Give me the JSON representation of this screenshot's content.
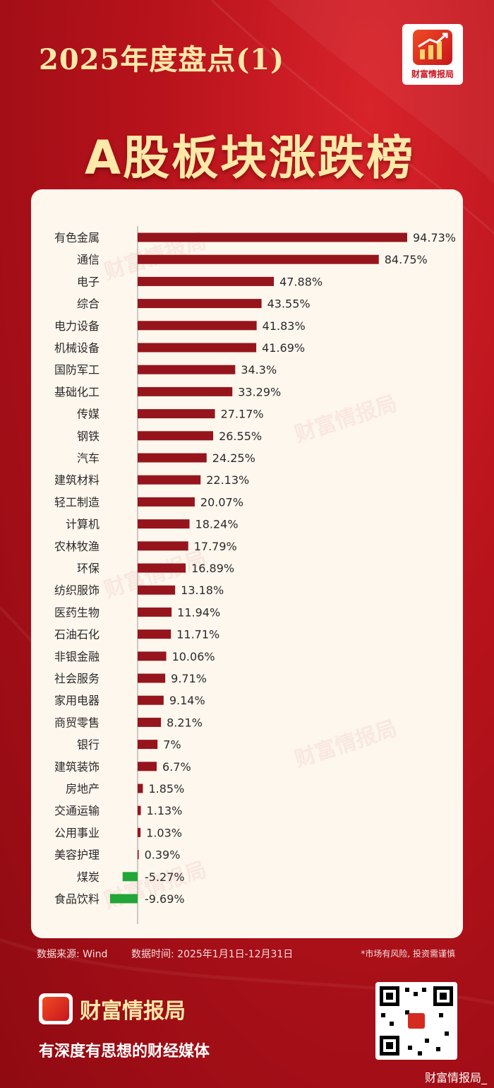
{
  "header": {
    "subtitle": "2025年度盘点(1)",
    "title": "A股板块涨跌榜",
    "logo_label": "财富情报局"
  },
  "watermark_text": "财富情报局",
  "chart_data": {
    "type": "bar",
    "orientation": "horizontal",
    "title": "A股板块涨跌榜",
    "xlabel": "",
    "ylabel": "",
    "grid": false,
    "value_suffix": "%",
    "colors": {
      "positive": "#96151c",
      "negative": "#21a637"
    },
    "categories": [
      "有色金属",
      "通信",
      "电子",
      "综合",
      "电力设备",
      "机械设备",
      "国防军工",
      "基础化工",
      "传媒",
      "钢铁",
      "汽车",
      "建筑材料",
      "轻工制造",
      "计算机",
      "农林牧渔",
      "环保",
      "纺织服饰",
      "医药生物",
      "石油石化",
      "非银金融",
      "社会服务",
      "家用电器",
      "商贸零售",
      "银行",
      "建筑装饰",
      "房地产",
      "交通运输",
      "公用事业",
      "美容护理",
      "煤炭",
      "食品饮料"
    ],
    "values": [
      94.73,
      84.75,
      47.88,
      43.55,
      41.83,
      41.69,
      34.3,
      33.29,
      27.17,
      26.55,
      24.25,
      22.13,
      20.07,
      18.24,
      17.79,
      16.89,
      13.18,
      11.94,
      11.71,
      10.06,
      9.71,
      9.14,
      8.21,
      7,
      6.7,
      1.85,
      1.13,
      1.03,
      0.39,
      -5.27,
      -9.69
    ],
    "labels": [
      "94.73%",
      "84.75%",
      "47.88%",
      "43.55%",
      "41.83%",
      "41.69%",
      "34.3%",
      "33.29%",
      "27.17%",
      "26.55%",
      "24.25%",
      "22.13%",
      "20.07%",
      "18.24%",
      "17.79%",
      "16.89%",
      "13.18%",
      "11.94%",
      "11.71%",
      "10.06%",
      "9.71%",
      "9.14%",
      "8.21%",
      "7%",
      "6.7%",
      "1.85%",
      "1.13%",
      "1.03%",
      "0.39%",
      "-5.27%",
      "-9.69%"
    ]
  },
  "footer": {
    "source": "数据来源: Wind",
    "period": "数据时间: 2025年1月1日-12月31日",
    "risk_note": "*市场有风险, 投资需谨慎"
  },
  "brand": {
    "name": "财富情报局",
    "slogan": "有深度有思想的财经媒体"
  },
  "weibo_handle": "财富情报局_"
}
